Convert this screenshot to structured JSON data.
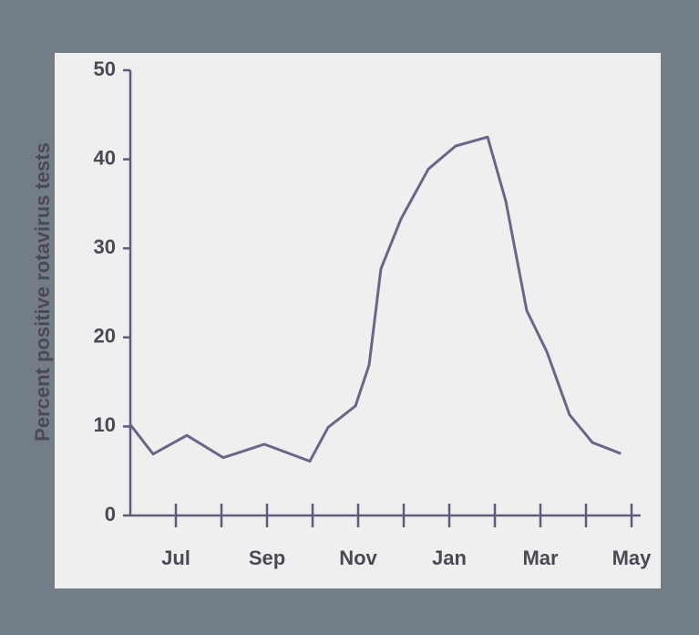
{
  "chart_data": {
    "type": "line",
    "y_label": "Percent positive rotavirus tests",
    "x": [
      0,
      0.5,
      1.24,
      2.04,
      2.94,
      3.94,
      4.34,
      4.94,
      5.24,
      5.5,
      5.94,
      6.54,
      7.14,
      7.84,
      8.24,
      8.7,
      9.14,
      9.64,
      10.14,
      10.74
    ],
    "values": [
      10.2,
      6.9,
      9,
      6.5,
      8,
      6.1,
      9.9,
      12.3,
      16.9,
      27.7,
      33.3,
      38.9,
      41.5,
      42.5,
      35.3,
      23,
      18.4,
      11.3,
      8.2,
      7
    ],
    "color": "#6a6688",
    "xlim": [
      0,
      11.2
    ],
    "xticks": [
      {
        "value": 1,
        "label": "Jul"
      },
      {
        "value": 3,
        "label": "Sep"
      },
      {
        "value": 5,
        "label": "Nov"
      },
      {
        "value": 7,
        "label": "Jan"
      },
      {
        "value": 9,
        "label": "Mar"
      },
      {
        "value": 11,
        "label": "May"
      }
    ],
    "xminor_ticks": [
      2,
      4,
      6,
      8,
      10
    ],
    "ylim": [
      0,
      50
    ],
    "yticks": [
      0,
      10,
      20,
      30,
      40,
      50
    ]
  }
}
